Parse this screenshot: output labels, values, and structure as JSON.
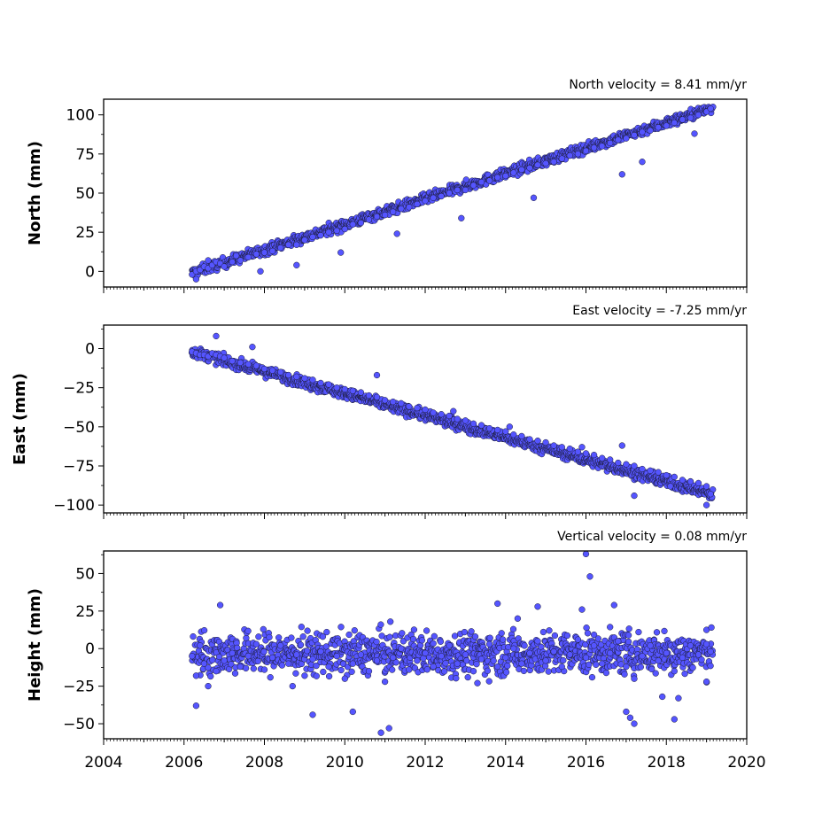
{
  "chart_data": [
    {
      "type": "scatter",
      "ylabel": "North (mm)",
      "annotation": "North velocity = 8.41 mm/yr",
      "velocity": 8.41,
      "xlim": [
        2004,
        2020
      ],
      "ylim": [
        -10,
        110
      ],
      "yticks": [
        0,
        25,
        50,
        75,
        100
      ],
      "ytick_labels": [
        "0",
        "25",
        "50",
        "75",
        "100"
      ],
      "trend": {
        "start": [
          2006.2,
          -1
        ],
        "end": [
          2019.1,
          104
        ]
      },
      "series": [
        {
          "x": [
            2006.2,
            2006.3,
            2006.4,
            2006.5,
            2006.6,
            2006.7,
            2006.8,
            2006.9,
            2007.0,
            2007.2,
            2007.4,
            2007.6,
            2007.8,
            2008.0,
            2008.2,
            2008.4,
            2008.6,
            2008.8,
            2009.0,
            2009.2,
            2009.4,
            2009.6,
            2009.8,
            2010.0,
            2010.2,
            2010.4,
            2010.6,
            2010.8,
            2011.0,
            2011.2,
            2011.4,
            2011.6,
            2011.8,
            2012.0,
            2012.2,
            2012.4,
            2012.6,
            2012.8,
            2013.0,
            2013.2,
            2013.4,
            2013.6,
            2013.8,
            2014.0,
            2014.2,
            2014.4,
            2014.6,
            2014.8,
            2015.0,
            2015.2,
            2015.4,
            2015.6,
            2015.8,
            2016.0,
            2016.2,
            2016.4,
            2016.6,
            2016.8,
            2017.0,
            2017.2,
            2017.4,
            2017.6,
            2017.8,
            2018.0,
            2018.2,
            2018.4,
            2018.6,
            2018.8,
            2019.0,
            2019.1,
            2006.3,
            2006.6,
            2007.3,
            2007.9,
            2008.8,
            2009.9,
            2011.3,
            2012.9,
            2014.7,
            2016.9,
            2017.4,
            2018.7
          ],
          "y": [
            -2,
            0,
            1,
            3,
            2,
            4,
            6,
            5,
            3,
            6,
            7,
            9,
            11,
            12,
            13,
            15,
            17,
            17,
            20,
            22,
            23,
            25,
            26,
            27,
            30,
            31,
            33,
            35,
            36,
            38,
            40,
            41,
            43,
            45,
            47,
            48,
            50,
            52,
            52,
            55,
            57,
            58,
            60,
            61,
            63,
            65,
            66,
            68,
            69,
            70,
            72,
            74,
            75,
            77,
            79,
            80,
            82,
            84,
            85,
            87,
            89,
            90,
            92,
            93,
            95,
            97,
            98,
            100,
            102,
            104,
            -5,
            7,
            10,
            0,
            4,
            12,
            24,
            34,
            47,
            62,
            70,
            88
          ]
        }
      ]
    },
    {
      "type": "scatter",
      "ylabel": "East (mm)",
      "annotation": "East velocity = -7.25 mm/yr",
      "velocity": -7.25,
      "xlim": [
        2004,
        2020
      ],
      "ylim": [
        -105,
        15
      ],
      "yticks": [
        0,
        -25,
        -50,
        -75,
        -100
      ],
      "ytick_labels": [
        "0",
        "−25",
        "−50",
        "−75",
        "−100"
      ],
      "trend": {
        "start": [
          2006.2,
          -2
        ],
        "end": [
          2019.1,
          -93
        ]
      },
      "series": [
        {
          "x": [
            2006.2,
            2006.3,
            2006.4,
            2006.5,
            2006.6,
            2006.7,
            2006.8,
            2006.9,
            2007.0,
            2007.2,
            2007.4,
            2007.6,
            2007.8,
            2008.0,
            2008.2,
            2008.4,
            2008.6,
            2008.8,
            2009.0,
            2009.2,
            2009.4,
            2009.6,
            2009.8,
            2010.0,
            2010.2,
            2010.4,
            2010.6,
            2010.8,
            2011.0,
            2011.2,
            2011.4,
            2011.6,
            2011.8,
            2012.0,
            2012.2,
            2012.4,
            2012.6,
            2012.8,
            2013.0,
            2013.2,
            2013.4,
            2013.6,
            2013.8,
            2014.0,
            2014.2,
            2014.4,
            2014.6,
            2014.8,
            2015.0,
            2015.2,
            2015.4,
            2015.6,
            2015.8,
            2016.0,
            2016.2,
            2016.4,
            2016.6,
            2016.8,
            2017.0,
            2017.2,
            2017.4,
            2017.6,
            2017.8,
            2018.0,
            2018.2,
            2018.4,
            2018.6,
            2018.8,
            2019.0,
            2019.1,
            2006.8,
            2007.7,
            2010.8,
            2012.7,
            2014.1,
            2015.9,
            2016.9,
            2017.2,
            2018.1,
            2019.0
          ],
          "y": [
            -2,
            -3,
            -4,
            -4,
            -5,
            -3,
            -4,
            -5,
            -6,
            -8,
            -9,
            -10,
            -11,
            -13,
            -14,
            -15,
            -17,
            -18,
            -19,
            -20,
            -22,
            -23,
            -25,
            -26,
            -27,
            -28,
            -30,
            -31,
            -33,
            -34,
            -35,
            -37,
            -38,
            -39,
            -41,
            -42,
            -43,
            -45,
            -46,
            -48,
            -49,
            -51,
            -52,
            -53,
            -55,
            -56,
            -58,
            -59,
            -60,
            -62,
            -63,
            -64,
            -66,
            -67,
            -68,
            -70,
            -71,
            -73,
            -74,
            -75,
            -77,
            -78,
            -79,
            -81,
            -82,
            -84,
            -85,
            -86,
            -88,
            -93,
            8,
            1,
            -17,
            -40,
            -50,
            -63,
            -62,
            -94,
            -88,
            -100
          ]
        }
      ]
    },
    {
      "type": "scatter",
      "ylabel": "Height (mm)",
      "annotation": "Vertical velocity = 0.08 mm/yr",
      "velocity": 0.08,
      "xlim": [
        2004,
        2020
      ],
      "ylim": [
        -60,
        65
      ],
      "yticks": [
        50,
        25,
        0,
        -25,
        -50
      ],
      "ytick_labels": [
        "50",
        "25",
        "0",
        "−25",
        "−50"
      ],
      "xticks": [
        2004,
        2006,
        2008,
        2010,
        2012,
        2014,
        2016,
        2018,
        2020
      ],
      "xtick_labels": [
        "2004",
        "2006",
        "2008",
        "2010",
        "2012",
        "2014",
        "2016",
        "2018",
        "2020"
      ],
      "series": [
        {
          "x": [
            2006.2,
            2006.3,
            2006.4,
            2006.5,
            2006.6,
            2006.8,
            2007.0,
            2007.2,
            2007.4,
            2007.6,
            2007.8,
            2008.0,
            2008.2,
            2008.4,
            2008.6,
            2008.8,
            2009.0,
            2009.2,
            2009.4,
            2009.6,
            2009.8,
            2010.0,
            2010.2,
            2010.4,
            2010.6,
            2010.8,
            2011.0,
            2011.2,
            2011.4,
            2011.6,
            2011.8,
            2012.0,
            2012.2,
            2012.4,
            2012.6,
            2012.8,
            2013.0,
            2013.2,
            2013.4,
            2013.6,
            2013.8,
            2014.0,
            2014.2,
            2014.4,
            2014.6,
            2014.8,
            2015.0,
            2015.2,
            2015.4,
            2015.6,
            2015.8,
            2016.0,
            2016.2,
            2016.4,
            2016.6,
            2016.8,
            2017.0,
            2017.2,
            2017.4,
            2017.6,
            2017.8,
            2018.0,
            2018.2,
            2018.4,
            2018.6,
            2018.8,
            2019.0,
            2019.1,
            2006.3,
            2006.9,
            2008.7,
            2009.2,
            2010.2,
            2010.9,
            2011.1,
            2013.3,
            2013.8,
            2014.3,
            2014.8,
            2015.9,
            2016.0,
            2016.1,
            2016.7,
            2017.0,
            2017.1,
            2017.2,
            2017.9,
            2018.2,
            2018.3,
            2019.0
          ],
          "y": [
            -5,
            -18,
            2,
            -10,
            -25,
            -15,
            -8,
            -3,
            -12,
            -5,
            3,
            -14,
            -6,
            2,
            -10,
            -4,
            -18,
            -7,
            -2,
            -12,
            -5,
            -20,
            -10,
            -4,
            -15,
            -8,
            -22,
            -6,
            0,
            -14,
            -8,
            -3,
            -12,
            -5,
            2,
            -10,
            -4,
            -15,
            -7,
            3,
            -12,
            -6,
            0,
            -10,
            -3,
            5,
            -8,
            -2,
            -12,
            -4,
            6,
            -6,
            2,
            -10,
            -3,
            5,
            -12,
            -20,
            -5,
            2,
            -8,
            -3,
            -15,
            -6,
            2,
            -4,
            3,
            -2,
            -38,
            29,
            -25,
            -44,
            -42,
            -56,
            -53,
            -23,
            30,
            20,
            28,
            26,
            63,
            48,
            29,
            -42,
            -46,
            -50,
            -32,
            -47,
            -33,
            -22
          ]
        }
      ]
    }
  ]
}
